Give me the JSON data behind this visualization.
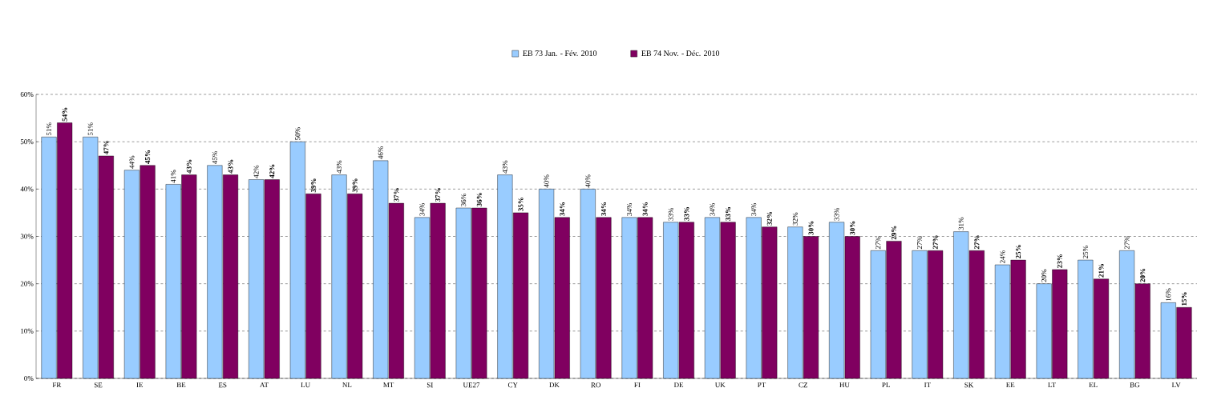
{
  "chart_data": {
    "type": "bar",
    "categories": [
      "FR",
      "SE",
      "IE",
      "BE",
      "ES",
      "AT",
      "LU",
      "NL",
      "MT",
      "SI",
      "UE27",
      "CY",
      "DK",
      "RO",
      "FI",
      "DE",
      "UK",
      "PT",
      "CZ",
      "HU",
      "PL",
      "IT",
      "SK",
      "EE",
      "LT",
      "EL",
      "BG",
      "LV"
    ],
    "series": [
      {
        "name": "EB 73 Jan. - Fév. 2010",
        "color": "#99ccff",
        "values": [
          51,
          51,
          44,
          41,
          45,
          42,
          50,
          43,
          46,
          34,
          36,
          43,
          40,
          40,
          34,
          33,
          34,
          34,
          32,
          33,
          27,
          27,
          31,
          24,
          20,
          25,
          27,
          16
        ],
        "value_labels": [
          "51%",
          "51%",
          "44%",
          "41%",
          "45%",
          "42%",
          "50%",
          "43%",
          "46%",
          "34%",
          "36%",
          "43%",
          "40%",
          "40%",
          "34%",
          "33%",
          "34%",
          "34%",
          "32%",
          "33%",
          "27%",
          "27%",
          "31%",
          "24%",
          "20%",
          "25%",
          "27%",
          "16%"
        ]
      },
      {
        "name": "EB 74 Nov. - Déc. 2010",
        "color": "#800060",
        "values": [
          54,
          47,
          45,
          43,
          43,
          42,
          39,
          39,
          37,
          37,
          36,
          35,
          34,
          34,
          34,
          33,
          33,
          32,
          30,
          30,
          29,
          27,
          27,
          25,
          23,
          21,
          20,
          15
        ],
        "value_labels": [
          "**54%**",
          "**47%**",
          "**45%**",
          "**43%**",
          "**43%**",
          "**42%**",
          "**39%**",
          "**39%**",
          "**37%**",
          "**37%**",
          "**36%**",
          "**35%**",
          "**34%**",
          "**34%**",
          "**34%**",
          "**33%**",
          "**33%**",
          "**32%**",
          "**30%**",
          "**30%**",
          "**29%**",
          "**27%**",
          "**27%**",
          "**25%**",
          "**23%**",
          "**21%**",
          "**20%**",
          "**15%**"
        ]
      }
    ],
    "ylim": [
      0,
      60
    ],
    "yticks": [
      {
        "value": 0,
        "label": "0%"
      },
      {
        "value": 10,
        "label": "10%"
      },
      {
        "value": 20,
        "label": "20%"
      },
      {
        "value": 30,
        "label": "30%"
      },
      {
        "value": 40,
        "label": "40%"
      },
      {
        "value": 50,
        "label": "50%"
      },
      {
        "value": 60,
        "label": "60%"
      }
    ],
    "grid": "y",
    "legend": "top"
  }
}
